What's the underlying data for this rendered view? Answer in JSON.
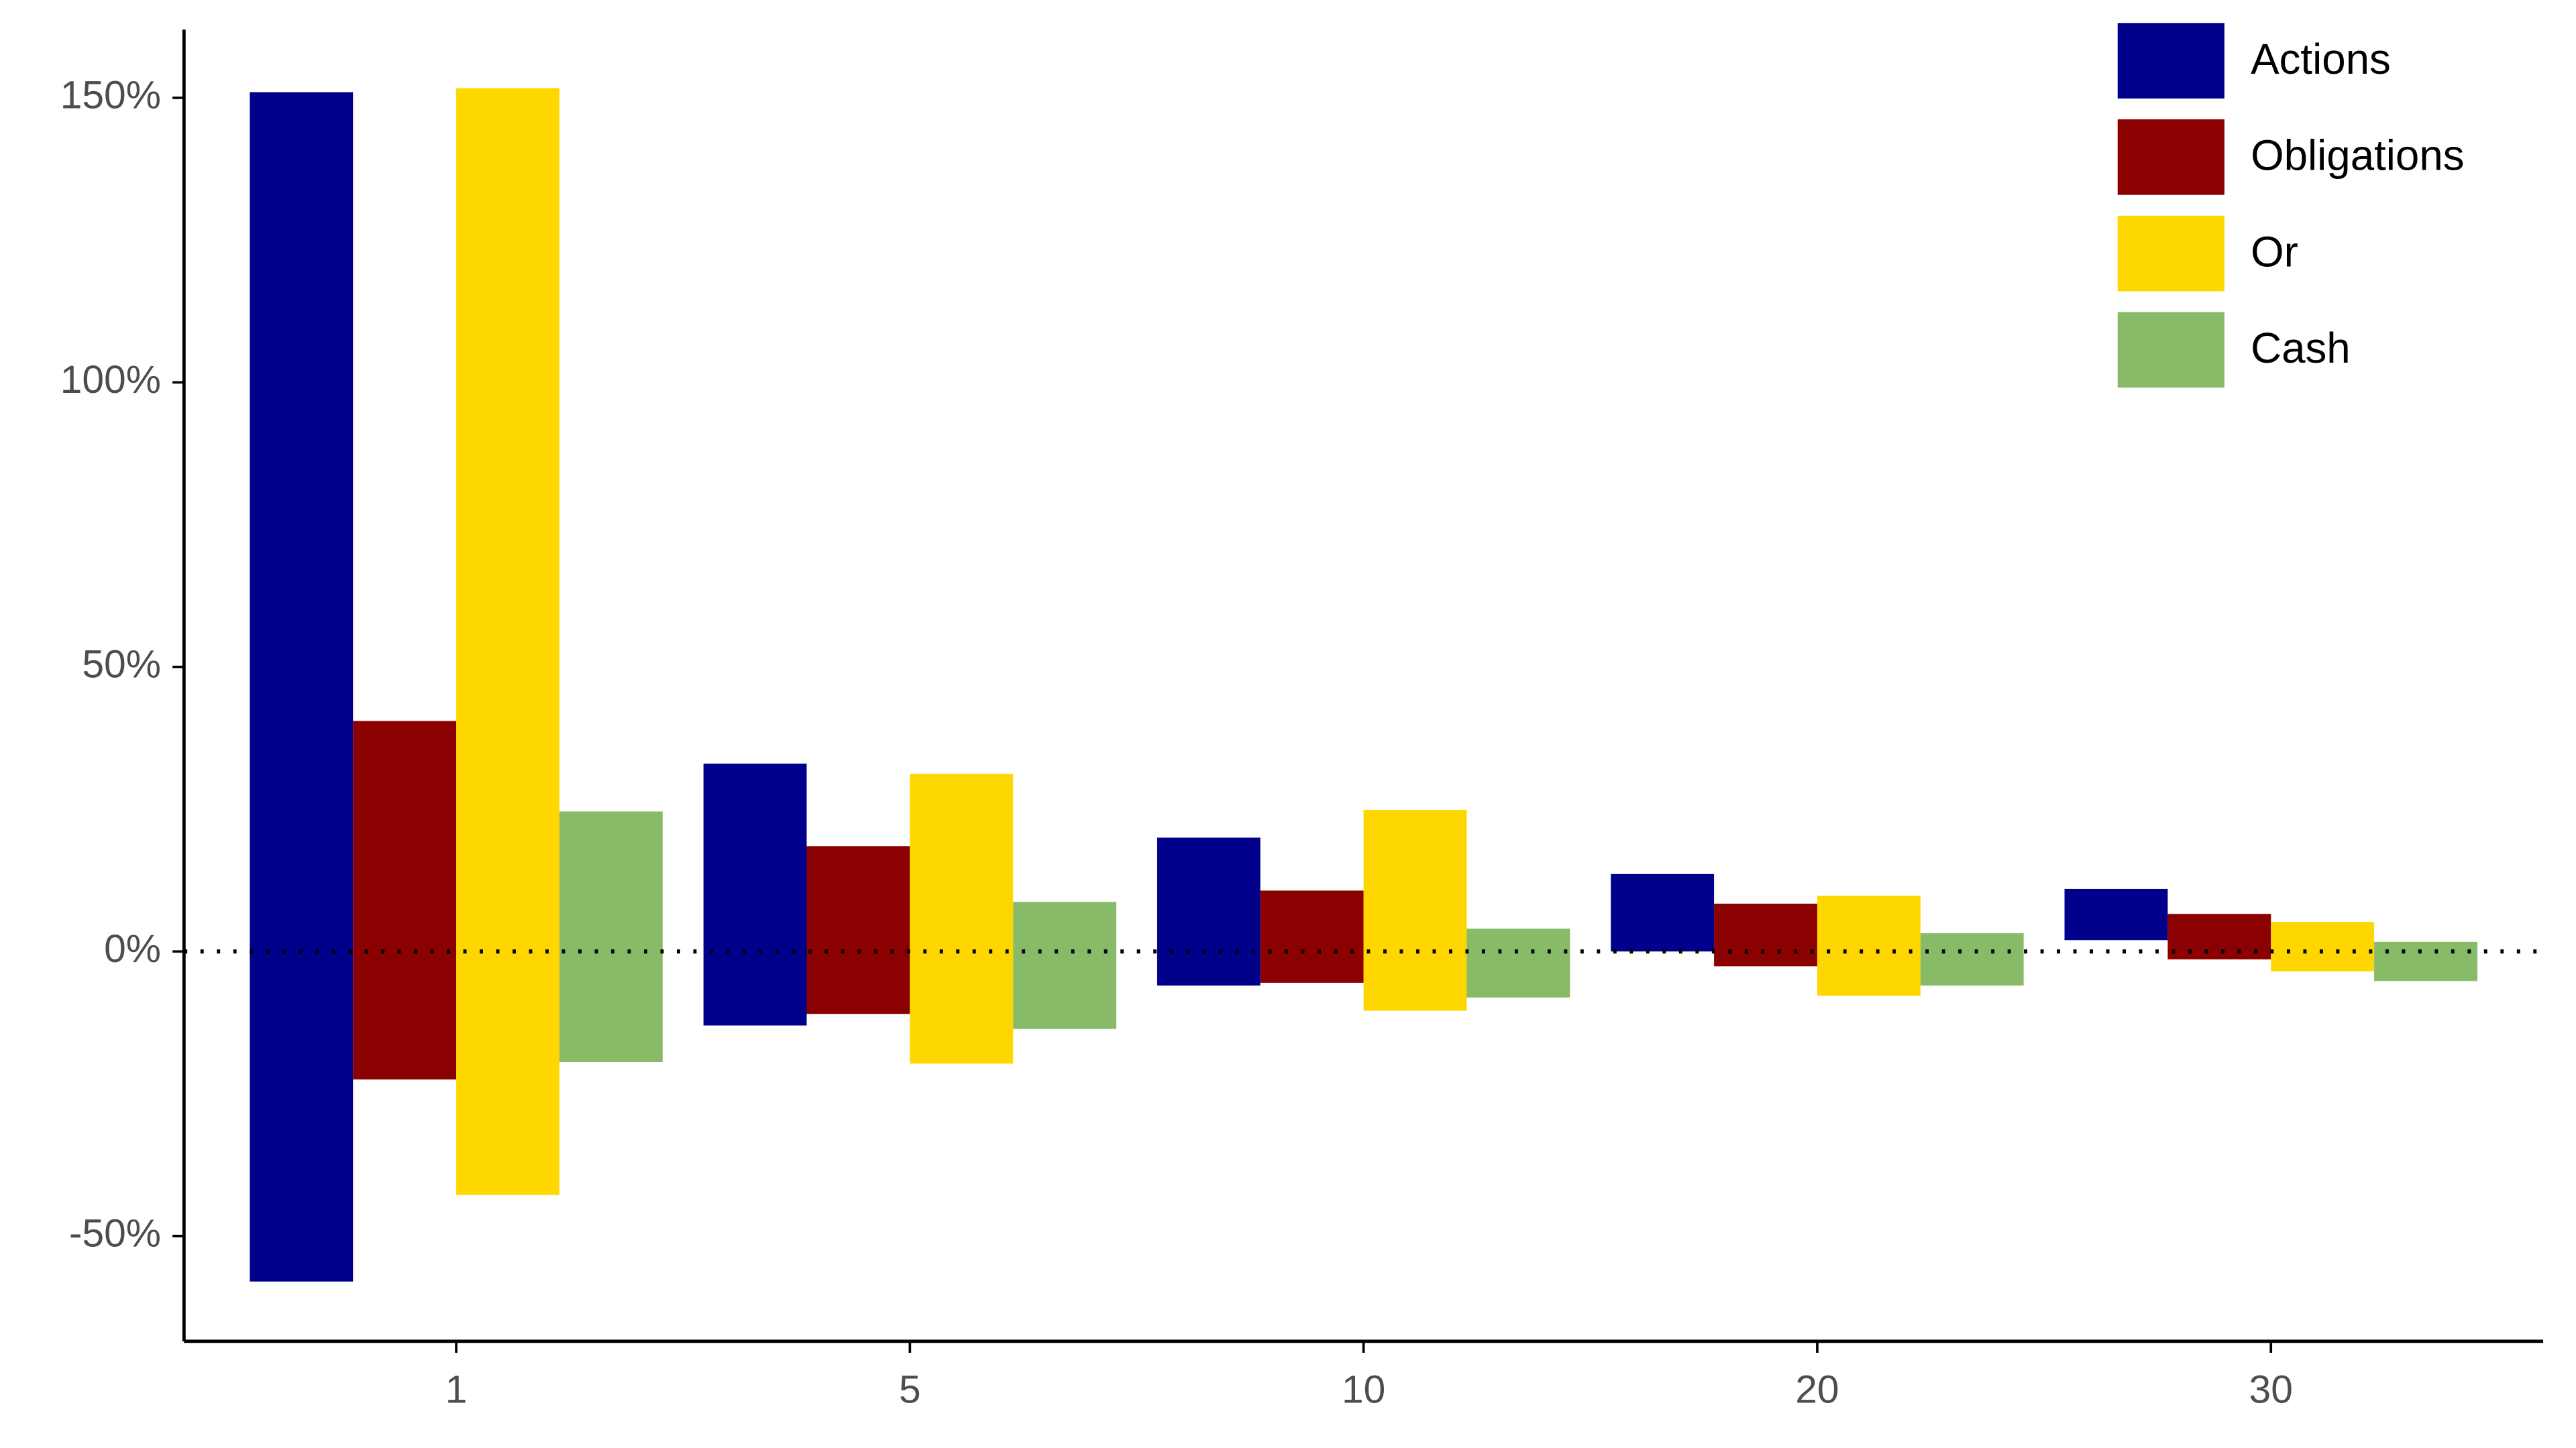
{
  "chart_data": {
    "type": "range-bar",
    "categories": [
      "1",
      "5",
      "10",
      "20",
      "30"
    ],
    "series": [
      {
        "name": "Actions",
        "color": "#00008b",
        "values": [
          [
            -58,
            151
          ],
          [
            -13,
            33
          ],
          [
            -6,
            20
          ],
          [
            0,
            13.6
          ],
          [
            2,
            11
          ]
        ]
      },
      {
        "name": "Obligations",
        "color": "#8b0000",
        "values": [
          [
            -22.5,
            40.5
          ],
          [
            -11,
            18.5
          ],
          [
            -5.5,
            10.7
          ],
          [
            -2.6,
            8.4
          ],
          [
            -1.4,
            6.6
          ]
        ]
      },
      {
        "name": "Or",
        "color": "#ffd700",
        "values": [
          [
            -42.8,
            151.7
          ],
          [
            -19.7,
            31.2
          ],
          [
            -10.4,
            24.9
          ],
          [
            -7.8,
            9.8
          ],
          [
            -3.5,
            5.2
          ]
        ]
      },
      {
        "name": "Cash",
        "color": "#87bb67",
        "values": [
          [
            -19.4,
            24.6
          ],
          [
            -13.6,
            8.7
          ],
          [
            -8.1,
            4
          ],
          [
            -6,
            3.2
          ],
          [
            -5.2,
            1.7
          ]
        ]
      }
    ],
    "ylim": [
      -68.5,
      162
    ],
    "yticks": [
      {
        "value": -50,
        "label": "-50%"
      },
      {
        "value": 0,
        "label": "0%"
      },
      {
        "value": 50,
        "label": "50%"
      },
      {
        "value": 100,
        "label": "100%"
      },
      {
        "value": 150,
        "label": "150%"
      }
    ],
    "reference_line": {
      "value": 0,
      "style": "dotted"
    },
    "legend": "top-right",
    "grid": false
  }
}
